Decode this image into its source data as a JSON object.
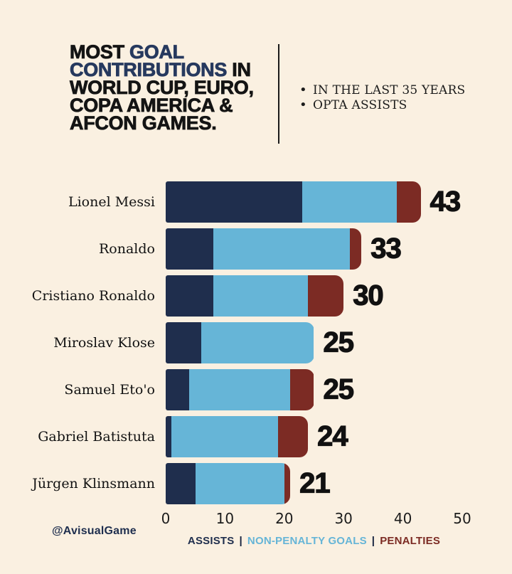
{
  "header": {
    "title": {
      "l1_black": "MOST ",
      "l1_accent": "GOAL",
      "l2_accent": "CONTRIBUTIONS",
      "l2_black": " IN",
      "l3": "WORLD CUP, EURO,",
      "l4": "COPA AMERICA &",
      "l5": "AFCON GAMES."
    },
    "bullets": [
      "IN THE LAST 35 YEARS",
      "OPTA ASSISTS"
    ]
  },
  "legend": {
    "assists": "ASSISTS",
    "non_penalty_goals": "NON-PENALTY GOALS",
    "penalties": "PENALTIES",
    "separator": "|"
  },
  "watermark": "@AvisualGame",
  "colors": {
    "background": "#FAF0E1",
    "assists": "#1F2E4D",
    "non_penalty_goals": "#66B5D7",
    "penalties": "#7C2B24",
    "title_accent": "#26395E",
    "text": "#141414"
  },
  "chart_data": {
    "type": "bar",
    "orientation": "horizontal",
    "stacked": true,
    "title": "Most goal contributions in World Cup, Euro, Copa America & AFCON games",
    "categories": [
      "Lionel Messi",
      "Ronaldo",
      "Cristiano Ronaldo",
      "Miroslav Klose",
      "Samuel Eto'o",
      "Gabriel Batistuta",
      "Jürgen Klinsmann"
    ],
    "series": [
      {
        "name": "Assists",
        "color": "#1F2E4D",
        "values": [
          23,
          8,
          8,
          6,
          4,
          1,
          5
        ]
      },
      {
        "name": "Non-penalty goals",
        "color": "#66B5D7",
        "values": [
          16,
          23,
          16,
          19,
          17,
          18,
          15
        ]
      },
      {
        "name": "Penalties",
        "color": "#7C2B24",
        "values": [
          4,
          2,
          6,
          0,
          4,
          5,
          1
        ]
      }
    ],
    "totals": [
      43,
      33,
      30,
      25,
      25,
      24,
      21
    ],
    "x_ticks": [
      0,
      10,
      20,
      30,
      40,
      50
    ],
    "xlim": [
      0,
      50
    ],
    "grid": false,
    "legend_position": "bottom"
  }
}
